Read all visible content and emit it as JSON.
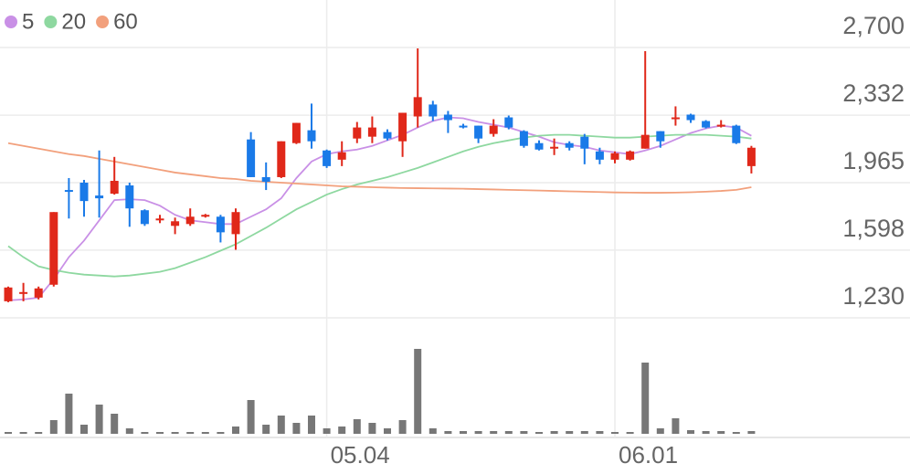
{
  "chart_data": {
    "type": "candlestick",
    "categories": [
      null,
      null,
      null,
      null,
      null,
      null,
      null,
      null,
      null,
      null,
      null,
      null,
      null,
      null,
      null,
      null,
      null,
      null,
      null,
      null,
      null,
      "05.04",
      null,
      null,
      null,
      null,
      null,
      null,
      null,
      null,
      null,
      null,
      null,
      null,
      null,
      null,
      null,
      null,
      null,
      null,
      "06.01",
      null,
      null,
      null,
      null,
      null,
      null,
      null,
      null,
      null
    ],
    "open": [
      1320,
      1360,
      1340,
      1410,
      1925,
      1965,
      1895,
      1905,
      1950,
      1815,
      1760,
      1730,
      1740,
      1780,
      1780,
      1685,
      2200,
      1995,
      1995,
      2180,
      2250,
      2140,
      2090,
      2205,
      2215,
      2240,
      2190,
      2325,
      2390,
      2335,
      2275,
      2275,
      2230,
      2320,
      2245,
      2180,
      2150,
      2180,
      2215,
      2135,
      2090,
      2090,
      2150,
      2245,
      2310,
      2335,
      2300,
      2270,
      2275,
      2055
    ],
    "high": [
      1400,
      1420,
      1400,
      1805,
      1990,
      1980,
      2140,
      2105,
      1965,
      1820,
      1790,
      1775,
      1825,
      1795,
      1790,
      1825,
      2240,
      2075,
      2190,
      2290,
      2395,
      2145,
      2190,
      2295,
      2325,
      2255,
      2345,
      2695,
      2410,
      2355,
      2285,
      2275,
      2310,
      2330,
      2250,
      2195,
      2205,
      2190,
      2230,
      2155,
      2135,
      2140,
      2680,
      2245,
      2380,
      2340,
      2305,
      2305,
      2280,
      2165
    ],
    "low": [
      1315,
      1320,
      1330,
      1400,
      1770,
      1780,
      1775,
      1900,
      1725,
      1730,
      1745,
      1685,
      1730,
      1775,
      1640,
      1600,
      1995,
      1925,
      1990,
      2175,
      2150,
      2045,
      2055,
      2180,
      2180,
      2195,
      2105,
      2265,
      2300,
      2235,
      2260,
      2180,
      2215,
      2255,
      2155,
      2140,
      2115,
      2140,
      2065,
      2065,
      2070,
      2085,
      2150,
      2155,
      2275,
      2290,
      2260,
      2265,
      2175,
      2015
    ],
    "close": [
      1395,
      1370,
      1390,
      1805,
      1915,
      1865,
      1880,
      1975,
      1825,
      1740,
      1770,
      1755,
      1780,
      1790,
      1695,
      1805,
      1995,
      1970,
      2190,
      2290,
      2190,
      2055,
      2130,
      2265,
      2265,
      2205,
      2345,
      2430,
      2325,
      2305,
      2270,
      2205,
      2275,
      2265,
      2165,
      2145,
      2160,
      2155,
      2150,
      2090,
      2125,
      2135,
      2225,
      2190,
      2320,
      2305,
      2265,
      2280,
      2180,
      2155
    ],
    "volume": [
      2,
      2,
      2,
      15,
      44,
      10,
      32,
      22,
      6,
      2,
      2,
      2,
      2,
      2,
      2,
      8,
      37,
      10,
      20,
      12,
      20,
      6,
      8,
      16,
      12,
      6,
      15,
      93,
      6,
      3,
      3,
      3,
      3,
      3,
      3,
      2,
      3,
      3,
      3,
      3,
      2,
      2,
      78,
      6,
      17,
      4,
      3,
      3,
      2,
      3
    ],
    "up_color": "#e0281a",
    "down_color": "#1a7ae8",
    "volume_color": "#777777",
    "series": [
      {
        "name": "5",
        "color": "#c990e6",
        "values": [
          1325,
          1330,
          1340,
          1440,
          1560,
          1650,
          1760,
          1870,
          1875,
          1870,
          1840,
          1790,
          1760,
          1750,
          1740,
          1740,
          1780,
          1820,
          1880,
          1990,
          2080,
          2120,
          2135,
          2145,
          2165,
          2195,
          2225,
          2265,
          2300,
          2320,
          2315,
          2295,
          2280,
          2265,
          2240,
          2215,
          2185,
          2170,
          2160,
          2140,
          2130,
          2120,
          2140,
          2165,
          2200,
          2235,
          2260,
          2275,
          2265,
          2220
        ]
      },
      {
        "name": "20",
        "color": "#8ed8a0",
        "values": [
          1620,
          1560,
          1510,
          1490,
          1475,
          1465,
          1460,
          1455,
          1460,
          1470,
          1480,
          1500,
          1530,
          1560,
          1595,
          1630,
          1675,
          1720,
          1770,
          1820,
          1860,
          1900,
          1930,
          1955,
          1975,
          1995,
          2020,
          2045,
          2075,
          2105,
          2135,
          2160,
          2180,
          2195,
          2210,
          2220,
          2225,
          2225,
          2220,
          2215,
          2210,
          2210,
          2215,
          2220,
          2225,
          2225,
          2225,
          2220,
          2215,
          2205
        ]
      },
      {
        "name": "60",
        "color": "#f2a07c",
        "values": [
          2180,
          2165,
          2150,
          2135,
          2120,
          2110,
          2095,
          2080,
          2065,
          2050,
          2035,
          2020,
          2010,
          2000,
          1990,
          1985,
          1975,
          1970,
          1965,
          1960,
          1955,
          1950,
          1945,
          1943,
          1940,
          1938,
          1936,
          1935,
          1934,
          1933,
          1932,
          1930,
          1928,
          1926,
          1924,
          1922,
          1920,
          1918,
          1916,
          1914,
          1912,
          1911,
          1910,
          1910,
          1911,
          1913,
          1916,
          1920,
          1926,
          1940
        ]
      }
    ],
    "ylim": [
      1230,
      2700
    ],
    "yticks": [
      {
        "value": 2700,
        "label": "2,700"
      },
      {
        "value": 2332,
        "label": "2,332"
      },
      {
        "value": 1965,
        "label": "1,965"
      },
      {
        "value": 1598,
        "label": "1,598"
      },
      {
        "value": 1230,
        "label": "1,230"
      }
    ],
    "grid": true
  }
}
